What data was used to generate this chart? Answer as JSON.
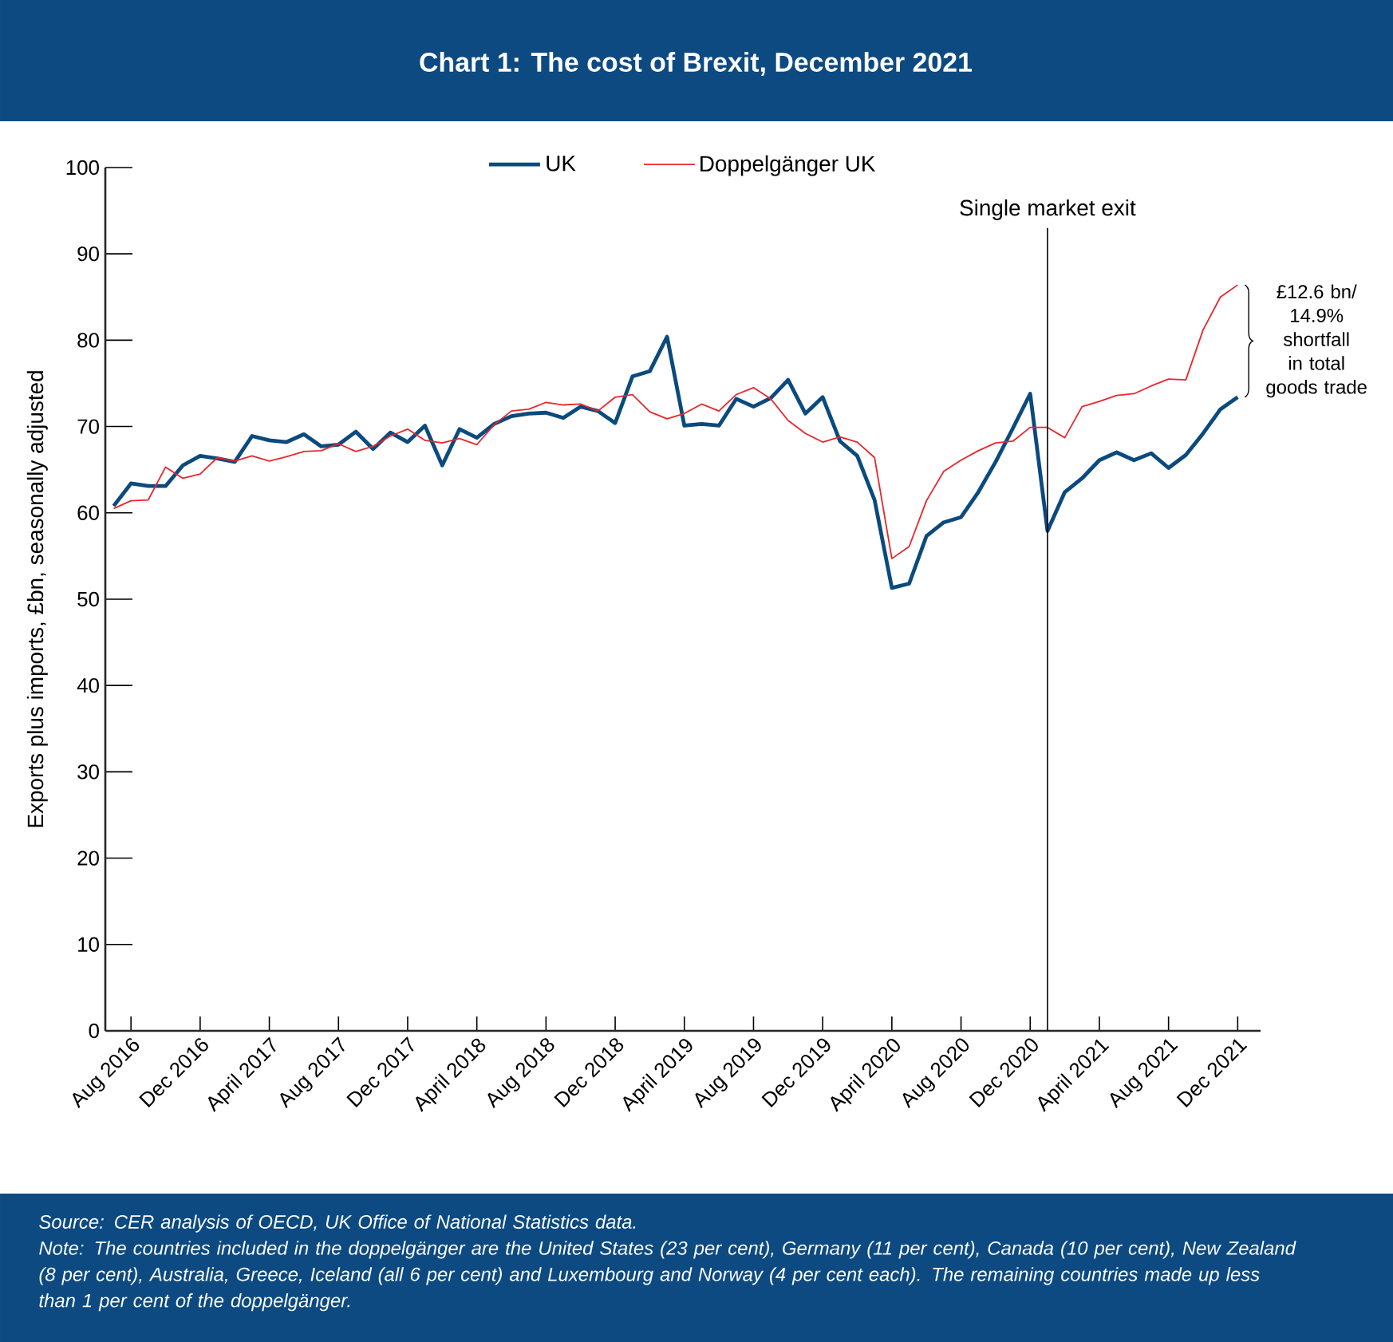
{
  "chart_data": {
    "type": "line",
    "title": "Chart 1: The cost of Brexit, December 2021",
    "ylabel": "Exports plus imports, £bn, seasonally adjusted",
    "x": [
      "2016-07",
      "2016-08",
      "2016-09",
      "2016-10",
      "2016-11",
      "2016-12",
      "2017-01",
      "2017-02",
      "2017-03",
      "2017-04",
      "2017-05",
      "2017-06",
      "2017-07",
      "2017-08",
      "2017-09",
      "2017-10",
      "2017-11",
      "2017-12",
      "2018-01",
      "2018-02",
      "2018-03",
      "2018-04",
      "2018-05",
      "2018-06",
      "2018-07",
      "2018-08",
      "2018-09",
      "2018-10",
      "2018-11",
      "2018-12",
      "2019-01",
      "2019-02",
      "2019-03",
      "2019-04",
      "2019-05",
      "2019-06",
      "2019-07",
      "2019-08",
      "2019-09",
      "2019-10",
      "2019-11",
      "2019-12",
      "2020-01",
      "2020-02",
      "2020-03",
      "2020-04",
      "2020-05",
      "2020-06",
      "2020-07",
      "2020-08",
      "2020-09",
      "2020-10",
      "2020-11",
      "2020-12",
      "2021-01",
      "2021-02",
      "2021-03",
      "2021-04",
      "2021-05",
      "2021-06",
      "2021-07",
      "2021-08",
      "2021-09",
      "2021-10",
      "2021-11",
      "2021-12"
    ],
    "series": [
      {
        "name": "UK",
        "color": "#0b4a7e",
        "values": [
          60.8,
          63.4,
          63.1,
          63.1,
          65.5,
          66.6,
          66.3,
          65.9,
          68.9,
          68.4,
          68.2,
          69.1,
          67.7,
          67.9,
          69.4,
          67.4,
          69.3,
          68.2,
          70.1,
          65.5,
          69.7,
          68.7,
          70.3,
          71.2,
          71.5,
          71.6,
          71.0,
          72.3,
          71.8,
          70.4,
          75.8,
          76.4,
          80.4,
          70.1,
          70.3,
          70.1,
          73.2,
          72.3,
          73.3,
          75.4,
          71.5,
          73.4,
          68.3,
          66.6,
          61.5,
          51.3,
          51.8,
          57.3,
          58.9,
          59.5,
          62.4,
          65.9,
          69.8,
          73.8,
          57.9,
          62.4,
          64.0,
          66.1,
          67.0,
          66.1,
          66.9,
          65.2,
          66.7,
          69.2,
          72.0,
          73.4
        ]
      },
      {
        "name": "Doppelgänger UK",
        "color": "#e8262d",
        "values": [
          60.5,
          61.4,
          61.5,
          65.3,
          64.0,
          64.5,
          66.4,
          66.0,
          66.6,
          66.0,
          66.5,
          67.1,
          67.2,
          68.0,
          67.1,
          67.7,
          68.9,
          69.7,
          68.4,
          68.1,
          68.6,
          67.9,
          70.2,
          71.8,
          72.0,
          72.8,
          72.5,
          72.6,
          71.8,
          73.4,
          73.7,
          71.7,
          70.9,
          71.5,
          72.6,
          71.8,
          73.7,
          74.5,
          73.2,
          70.7,
          69.2,
          68.2,
          68.8,
          68.2,
          66.4,
          54.7,
          56.1,
          61.4,
          64.8,
          66.1,
          67.2,
          68.1,
          68.3,
          69.9,
          69.9,
          68.7,
          72.3,
          72.9,
          73.6,
          73.8,
          74.7,
          75.5,
          75.4,
          81.2,
          85.0,
          86.4
        ]
      }
    ],
    "xlim": [
      "2016-06-17",
      "2022-01-11"
    ],
    "xticks": [
      {
        "value": "2016-08",
        "label": "Aug 2016"
      },
      {
        "value": "2016-12",
        "label": "Dec 2016"
      },
      {
        "value": "2017-04",
        "label": "April 2017"
      },
      {
        "value": "2017-08",
        "label": "Aug 2017"
      },
      {
        "value": "2017-12",
        "label": "Dec 2017"
      },
      {
        "value": "2018-04",
        "label": "April 2018"
      },
      {
        "value": "2018-08",
        "label": "Aug 2018"
      },
      {
        "value": "2018-12",
        "label": "Dec 2018"
      },
      {
        "value": "2019-04",
        "label": "April  2019"
      },
      {
        "value": "2019-08",
        "label": "Aug 2019"
      },
      {
        "value": "2019-12",
        "label": "Dec 2019"
      },
      {
        "value": "2020-04",
        "label": "April 2020"
      },
      {
        "value": "2020-08",
        "label": "Aug 2020"
      },
      {
        "value": "2020-12",
        "label": "Dec 2020"
      },
      {
        "value": "2021-04",
        "label": "April 2021"
      },
      {
        "value": "2021-08",
        "label": "Aug 2021"
      },
      {
        "value": "2021-12",
        "label": "Dec 2021"
      }
    ],
    "ylim": [
      0,
      100
    ],
    "yticks": [
      0,
      10,
      20,
      30,
      40,
      50,
      60,
      70,
      80,
      90,
      100
    ],
    "ref_lines": [
      {
        "axis": "x",
        "value": "2021-01",
        "label": "Single market exit",
        "color": "#000000"
      }
    ],
    "annotations": [
      "£12.6 bn/ 14.9% shortfall in total goods trade",
      "Source: CER analysis of OECD, UK Office of National Statistics data.",
      "Note: The countries included in the doppelgänger are the United States (23 per cent), Germany (11 per cent), Canada (10 per cent), New Zealand (8 per cent), Australia, Greece, Iceland (all 6 per cent) and Luxembourg and Norway (4 per cent each). The remaining countries made up less than 1 per cent of the doppelgänger."
    ],
    "grid": false,
    "legend": "top"
  }
}
